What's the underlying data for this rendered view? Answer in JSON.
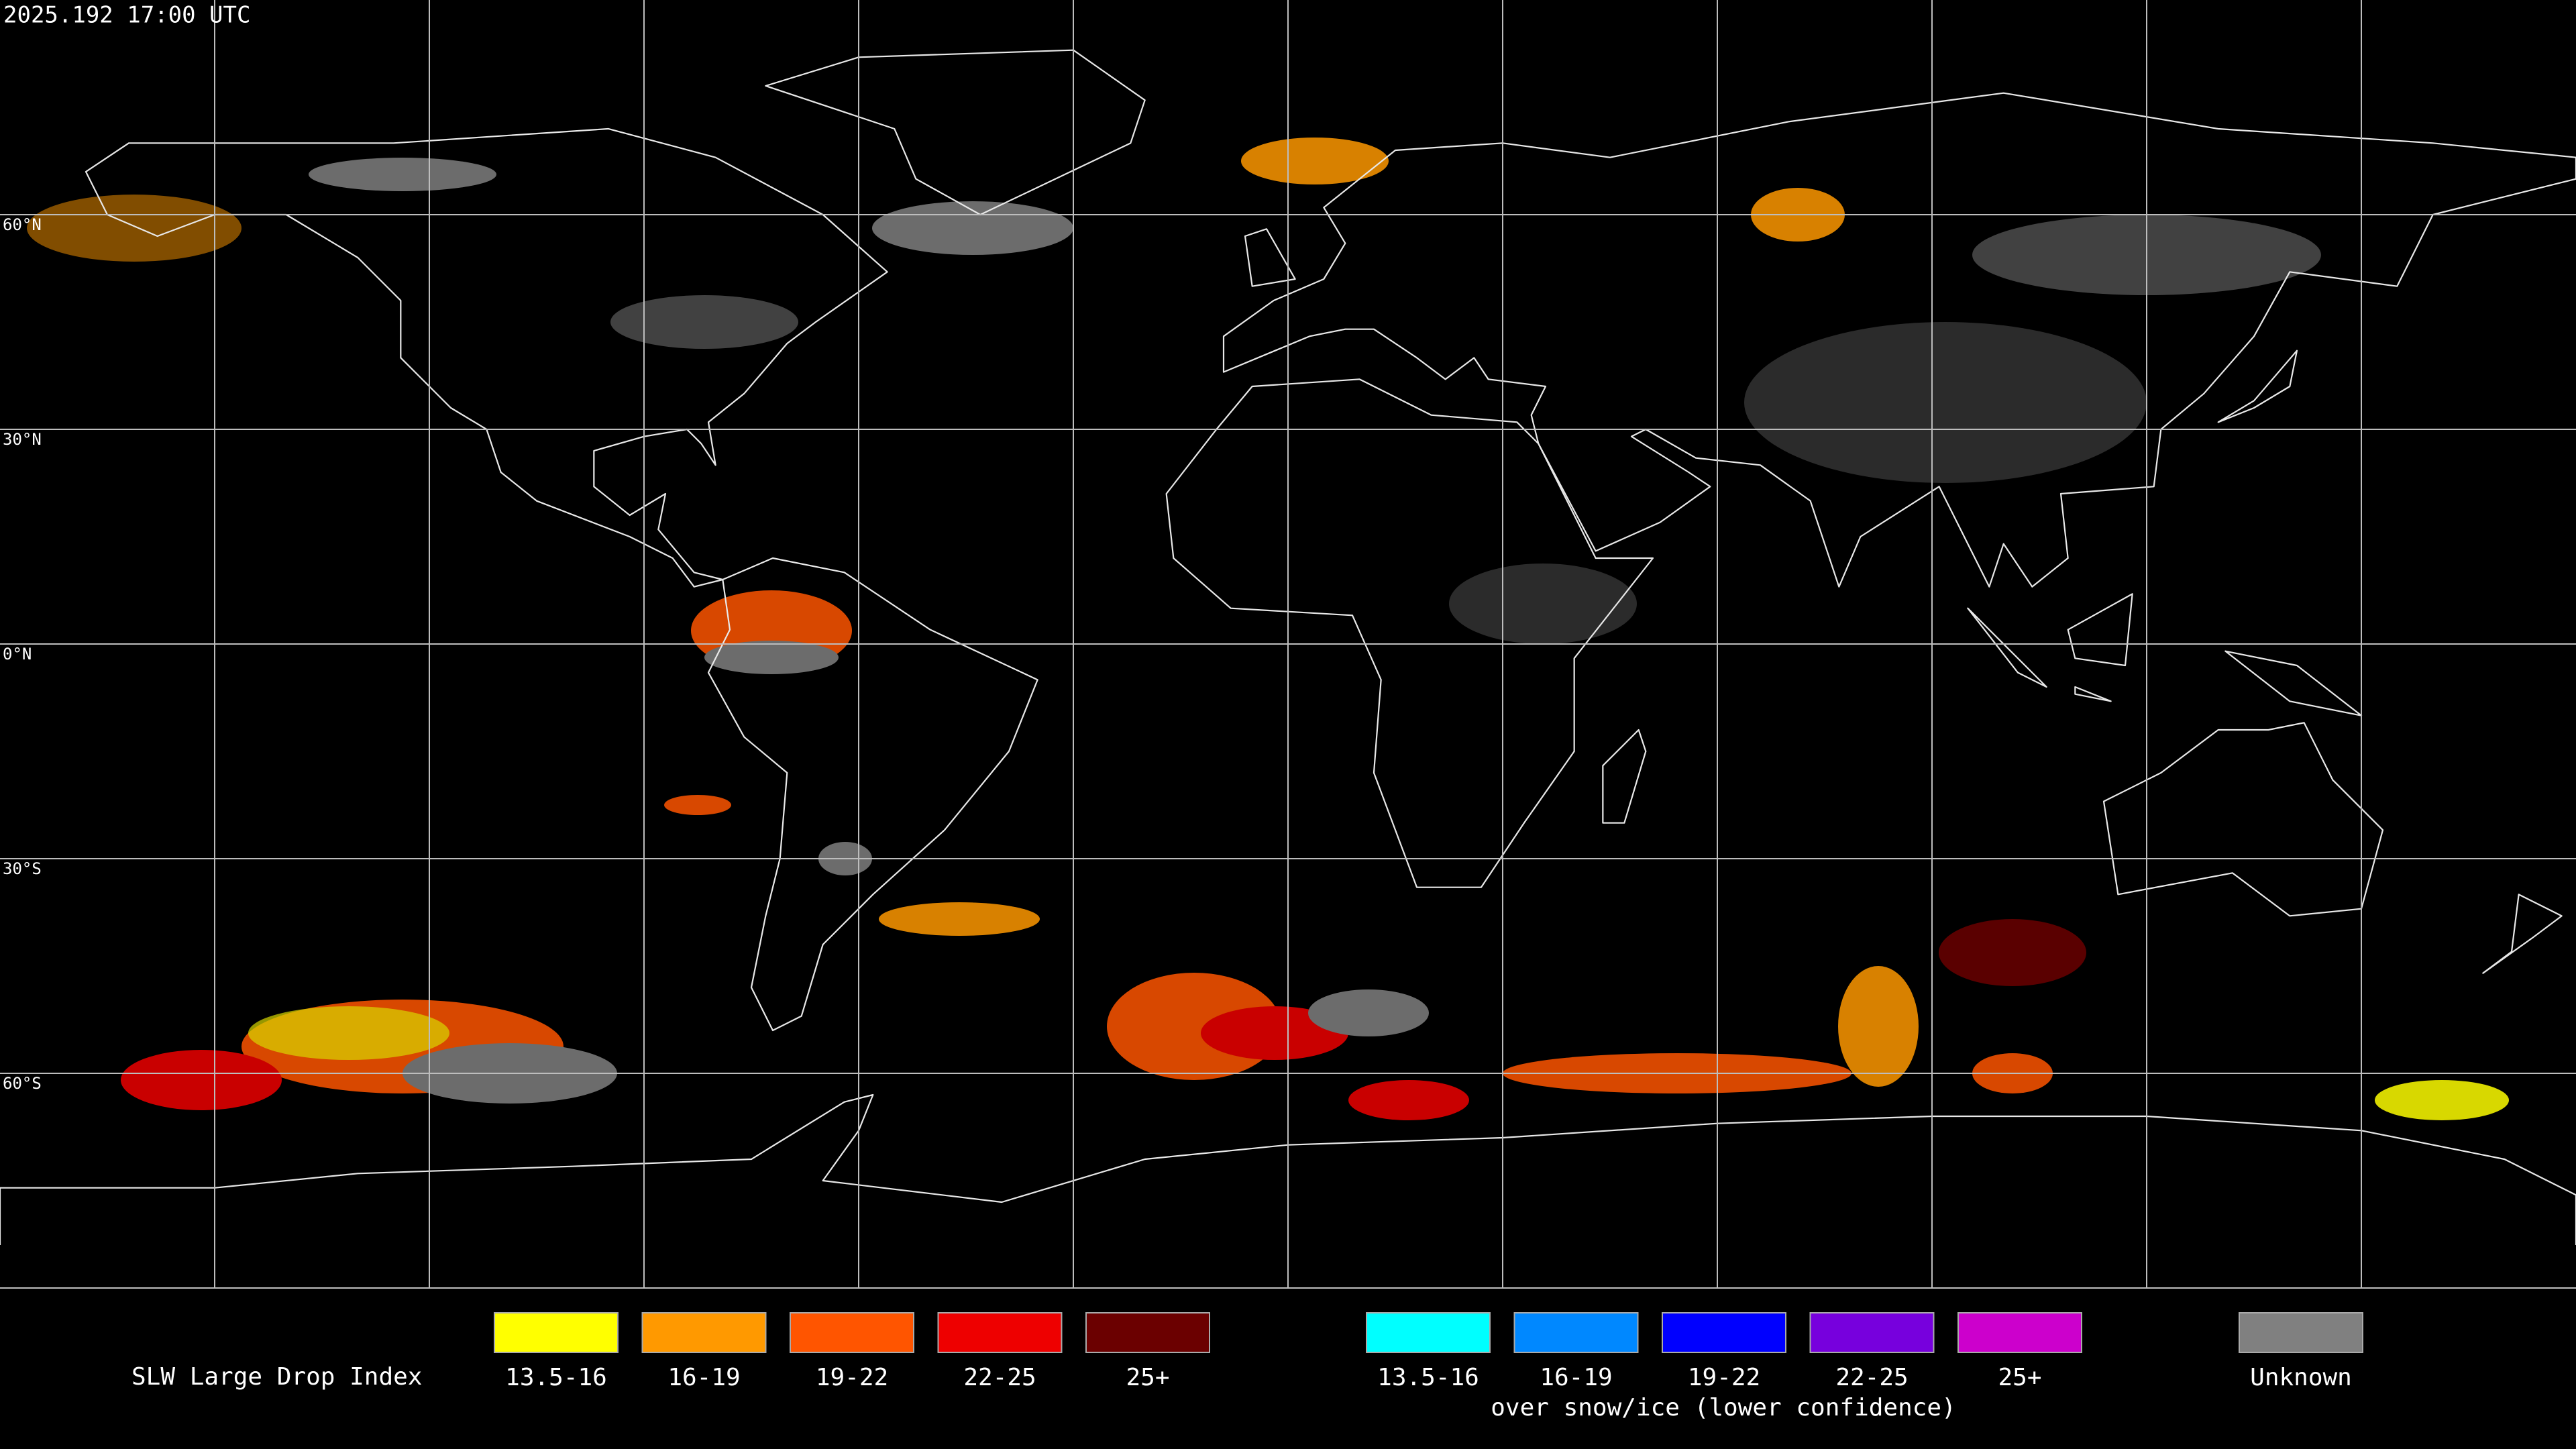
{
  "timestamp": "2025.192 17:00 UTC",
  "lat_lines": [
    {
      "value": 60,
      "label": "60°N"
    },
    {
      "value": 30,
      "label": "30°N"
    },
    {
      "value": 0,
      "label": "0°N"
    },
    {
      "value": -30,
      "label": "30°S"
    },
    {
      "value": -60,
      "label": "60°S"
    }
  ],
  "legend": {
    "title": "SLW Large Drop Index",
    "items": [
      {
        "label": "13.5-16",
        "color": "#ffff00"
      },
      {
        "label": "16-19",
        "color": "#ff9900"
      },
      {
        "label": "19-22",
        "color": "#ff5500"
      },
      {
        "label": "22-25",
        "color": "#ee0000"
      },
      {
        "label": "25+",
        "color": "#6b0000"
      }
    ],
    "snow_items": [
      {
        "label": "13.5-16",
        "color": "#00ffff"
      },
      {
        "label": "16-19",
        "color": "#0088ff"
      },
      {
        "label": "19-22",
        "color": "#0000ff"
      },
      {
        "label": "22-25",
        "color": "#7700dd"
      },
      {
        "label": "25+",
        "color": "#cc00cc"
      }
    ],
    "snow_caption": "over snow/ice (lower confidence)",
    "unknown": {
      "label": "Unknown",
      "color": "#808080"
    }
  }
}
